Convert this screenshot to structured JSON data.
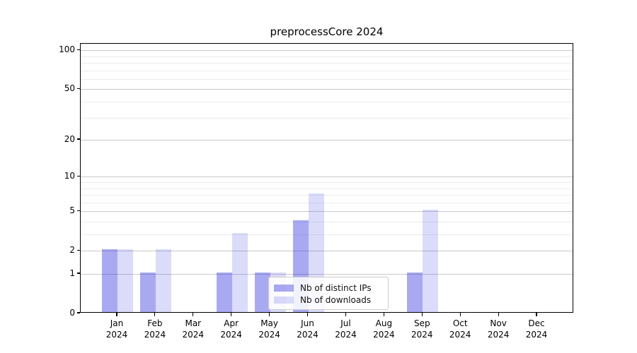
{
  "chart_data": {
    "type": "bar",
    "title": "preprocessCore 2024",
    "categories": [
      "Jan",
      "Feb",
      "Mar",
      "Apr",
      "May",
      "Jun",
      "Jul",
      "Aug",
      "Sep",
      "Oct",
      "Nov",
      "Dec"
    ],
    "year_label": "2024",
    "series": [
      {
        "name": "Nb of distinct IPs",
        "color": "#a9a9f2",
        "fill": "rgba(28,28,222,0.38)",
        "values": [
          2,
          1,
          0,
          1,
          1,
          4,
          0,
          0,
          1,
          0,
          0,
          0
        ]
      },
      {
        "name": "Nb of downloads",
        "color": "#dbdbf9",
        "fill": "rgba(28,28,222,0.16)",
        "values": [
          2,
          2,
          0,
          3,
          1,
          7,
          0,
          0,
          5,
          0,
          0,
          0
        ]
      }
    ],
    "yscale": "log1p",
    "ylim": [
      0,
      112
    ],
    "y_ticks": [
      0,
      1,
      2,
      5,
      10,
      20,
      50,
      100
    ],
    "y_minor_ticks": [
      3,
      4,
      6,
      7,
      8,
      9,
      30,
      40,
      60,
      70,
      80,
      90
    ],
    "grid": true,
    "legend_position": "lower center",
    "colors": {
      "major_grid": "#c9c9c9",
      "minor_grid": "#ececec",
      "spine": "#000000",
      "text": "#000000"
    }
  }
}
